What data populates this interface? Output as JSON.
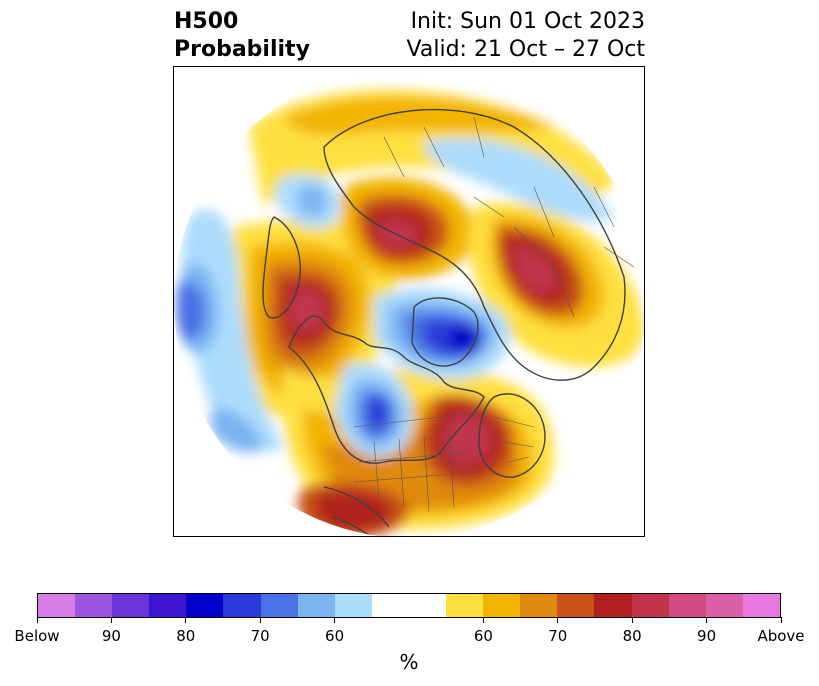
{
  "header": {
    "title_line1": "H500",
    "title_line2": "Probability",
    "init": "Init: Sun 01 Oct 2023",
    "valid": "Valid: 21 Oct – 27 Oct"
  },
  "colorbar": {
    "colors": [
      "#d67de8",
      "#9b55e0",
      "#6a35d8",
      "#3c15d0",
      "#0000c8",
      "#2a3ad8",
      "#4a72e6",
      "#7ab4f2",
      "#acdcfc",
      "#ffffff",
      "#ffffff",
      "#ffe040",
      "#f2b400",
      "#e08a10",
      "#c85218",
      "#b0201e",
      "#c0344c",
      "#d04c80",
      "#dc60a8",
      "#e878e0"
    ],
    "labels": [
      "Below",
      "90",
      "80",
      "70",
      "60",
      "60",
      "70",
      "80",
      "90",
      "Above"
    ],
    "unit": "%"
  },
  "map": {
    "projection": "north-polar-stereographic",
    "features": [
      "coastlines",
      "country-borders",
      "state-borders"
    ]
  }
}
